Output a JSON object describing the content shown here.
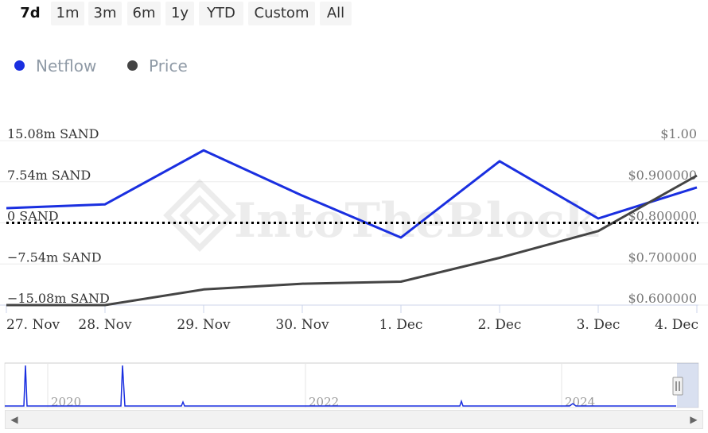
{
  "range_selector": {
    "buttons": [
      "7d",
      "1m",
      "3m",
      "6m",
      "1y",
      "YTD",
      "Custom",
      "All"
    ],
    "selected": "7d"
  },
  "legend": [
    {
      "name": "Netflow",
      "color": "#1a2fe0"
    },
    {
      "name": "Price",
      "color": "#444444"
    }
  ],
  "watermark": "IntoTheBlock",
  "chart_data": {
    "type": "line",
    "x": [
      "27. Nov",
      "28. Nov",
      "29. Nov",
      "30. Nov",
      "1. Dec",
      "2. Dec",
      "3. Dec",
      "4. Dec"
    ],
    "series": [
      {
        "name": "Netflow",
        "axis": "left",
        "color": "#1a2fe0",
        "values": [
          2.7,
          3.4,
          13.3,
          5.0,
          -2.7,
          11.3,
          0.8,
          6.5
        ]
      },
      {
        "name": "Price",
        "axis": "right",
        "color": "#444444",
        "values": [
          0.6,
          0.6,
          0.638,
          0.652,
          0.657,
          0.715,
          0.78,
          0.915
        ]
      }
    ],
    "y_left": {
      "ticks": [
        15.08,
        7.54,
        0,
        -7.54,
        -15.08
      ],
      "tick_labels": [
        "15.08m SAND",
        "7.54m SAND",
        "0 SAND",
        "−7.54m SAND",
        "−15.08m SAND"
      ],
      "range": [
        -15.08,
        15.08
      ]
    },
    "y_right": {
      "ticks": [
        1.0,
        0.9,
        0.8,
        0.7,
        0.6
      ],
      "tick_labels": [
        "$1.00",
        "$0.900000",
        "$0.800000",
        "$0.700000",
        "$0.600000"
      ],
      "range": [
        0.6,
        1.0
      ]
    },
    "zero_line": "dotted",
    "grid": true,
    "legend_position": "top-left"
  },
  "navigator": {
    "year_labels": [
      "2020",
      "2022",
      "2024"
    ],
    "handle_icon": "grip-lines-icon",
    "left_arrow_icon": "triangle-left-icon",
    "right_arrow_icon": "triangle-right-icon"
  }
}
